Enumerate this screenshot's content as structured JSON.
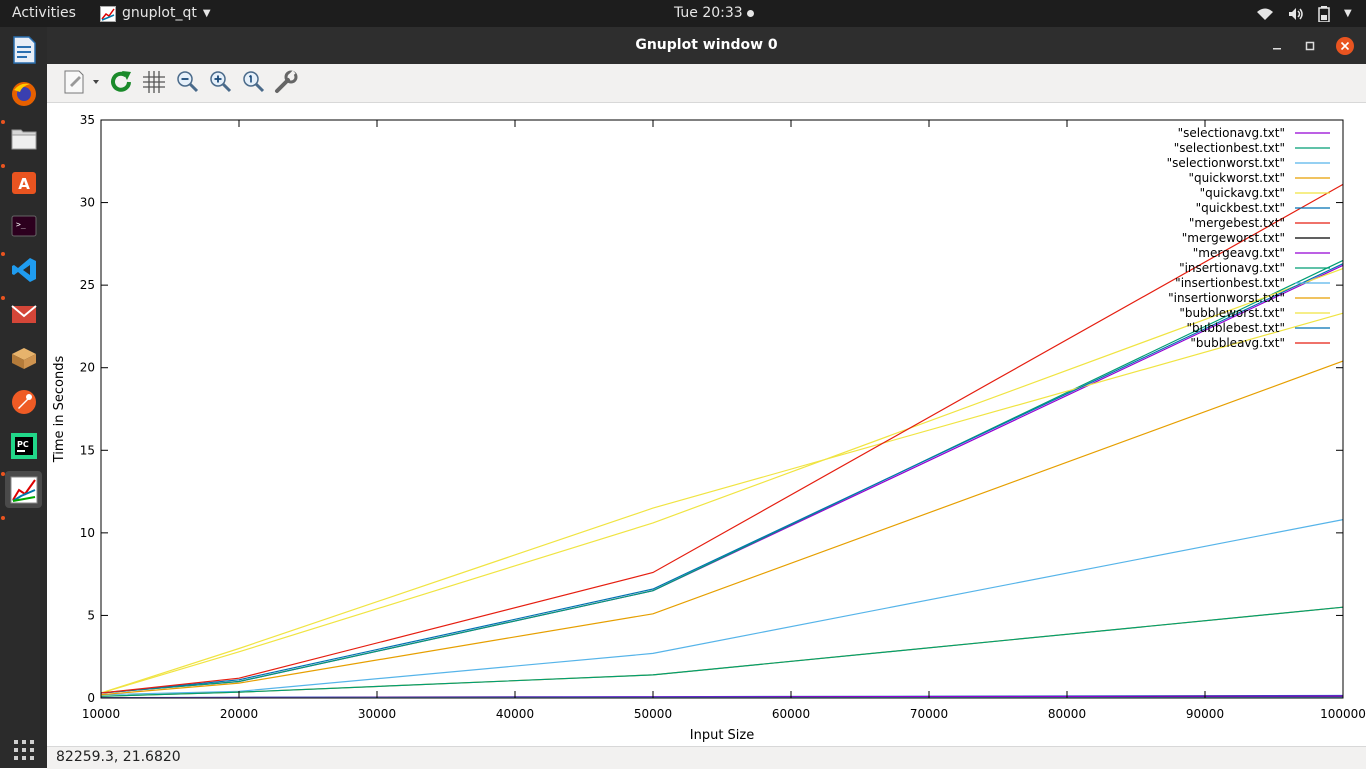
{
  "topbar": {
    "activities": "Activities",
    "app_name": "gnuplot_qt",
    "clock": "Tue 20:33"
  },
  "window": {
    "title": "Gnuplot window 0"
  },
  "dock": {
    "items": [
      {
        "icon": "libreoffice-writer-icon",
        "active": false,
        "running": false
      },
      {
        "icon": "firefox-icon",
        "active": false,
        "running": true
      },
      {
        "icon": "files-icon",
        "active": false,
        "running": true
      },
      {
        "icon": "software-center-icon",
        "active": false,
        "running": false
      },
      {
        "icon": "terminal-icon",
        "active": false,
        "running": true
      },
      {
        "icon": "vscode-icon",
        "active": false,
        "running": true
      },
      {
        "icon": "mail-icon",
        "active": false,
        "running": false
      },
      {
        "icon": "vm-icon",
        "active": false,
        "running": false
      },
      {
        "icon": "postman-icon",
        "active": false,
        "running": false
      },
      {
        "icon": "pycharm-icon",
        "active": false,
        "running": true
      },
      {
        "icon": "gnuplot-icon",
        "active": true,
        "running": true
      }
    ]
  },
  "toolbar": {
    "items": [
      "export-icon",
      "replot-icon",
      "grid-icon",
      "zoom-out-icon",
      "zoom-in-icon",
      "zoom-previous-icon",
      "settings-icon"
    ]
  },
  "status": {
    "coords": "82259.3,  21.6820"
  },
  "chart_data": {
    "type": "line",
    "xlabel": "Input Size",
    "ylabel": "Time in Seconds",
    "xlim": [
      10000,
      100000
    ],
    "ylim": [
      0,
      35
    ],
    "xticks": [
      10000,
      20000,
      30000,
      40000,
      50000,
      60000,
      70000,
      80000,
      90000,
      100000
    ],
    "xtick_labels": [
      "10000",
      "20000",
      "30000",
      "40000",
      "50000",
      "60000",
      "70000",
      "80000",
      "90000",
      "100000"
    ],
    "yticks": [
      0,
      5,
      10,
      15,
      20,
      25,
      30,
      35
    ],
    "ytick_labels": [
      "0",
      "5",
      "10",
      "15",
      "20",
      "25",
      "30",
      "35"
    ],
    "grid": false,
    "legend_position": "top-right",
    "x": [
      10000,
      20000,
      50000,
      100000
    ],
    "series": [
      {
        "name": "\"selectionavg.txt\"",
        "color": "#9400d3",
        "values": [
          0.3,
          1.0,
          6.5,
          26.2
        ]
      },
      {
        "name": "\"selectionbest.txt\"",
        "color": "#009e73",
        "values": [
          0.3,
          1.0,
          6.5,
          26.5
        ]
      },
      {
        "name": "\"selectionworst.txt\"",
        "color": "#56b4e9",
        "values": [
          0.2,
          0.4,
          2.7,
          10.8
        ]
      },
      {
        "name": "\"quickworst.txt\"",
        "color": "#e69f00",
        "values": [
          0.1,
          0.35,
          1.4,
          5.5
        ]
      },
      {
        "name": "\"quickavg.txt\"",
        "color": "#f0e442",
        "values": [
          0.3,
          3.0,
          11.5,
          23.3
        ]
      },
      {
        "name": "\"quickbest.txt\"",
        "color": "#0072b2",
        "values": [
          0.02,
          0.04,
          0.08,
          0.15
        ]
      },
      {
        "name": "\"mergebest.txt\"",
        "color": "#e51e10",
        "values": [
          0.01,
          0.02,
          0.05,
          0.1
        ]
      },
      {
        "name": "\"mergeworst.txt\"",
        "color": "#000000",
        "values": [
          0.01,
          0.02,
          0.05,
          0.1
        ]
      },
      {
        "name": "\"mergeavg.txt\"",
        "color": "#9400d3",
        "values": [
          0.01,
          0.03,
          0.06,
          0.12
        ]
      },
      {
        "name": "\"insertionavg.txt\"",
        "color": "#009e73",
        "values": [
          0.1,
          0.35,
          1.4,
          5.5
        ]
      },
      {
        "name": "\"insertionbest.txt\"",
        "color": "#56b4e9",
        "values": [
          0.01,
          0.01,
          0.02,
          0.03
        ]
      },
      {
        "name": "\"insertionworst.txt\"",
        "color": "#e69f00",
        "values": [
          0.2,
          0.9,
          5.1,
          20.4
        ]
      },
      {
        "name": "\"bubbleworst.txt\"",
        "color": "#f0e442",
        "values": [
          0.3,
          2.8,
          10.6,
          26.0
        ]
      },
      {
        "name": "\"bubblebest.txt\"",
        "color": "#0072b2",
        "values": [
          0.3,
          1.1,
          6.6,
          26.3
        ]
      },
      {
        "name": "\"bubbleavg.txt\"",
        "color": "#e51e10",
        "values": [
          0.3,
          1.2,
          7.6,
          31.1
        ]
      }
    ]
  }
}
